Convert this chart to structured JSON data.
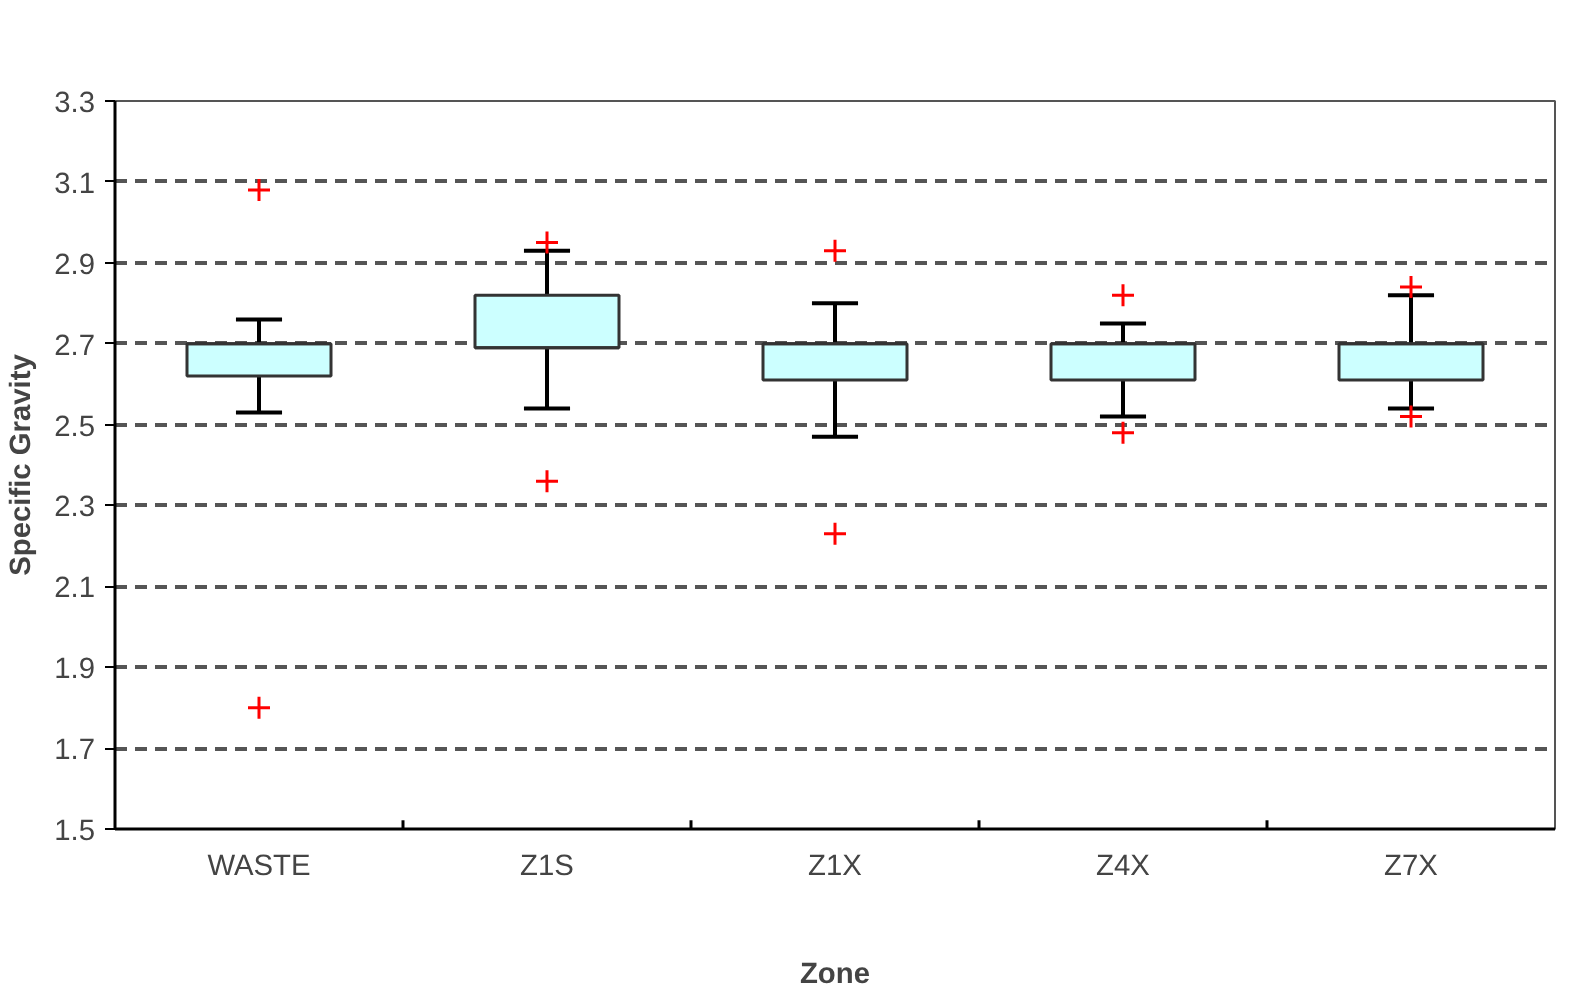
{
  "chart_data": {
    "type": "box",
    "xlabel": "Zone",
    "ylabel": "Specific Gravity",
    "categories": [
      "WASTE",
      "Z1S",
      "Z1X",
      "Z4X",
      "Z7X"
    ],
    "boxes": [
      {
        "low": 2.53,
        "q1": 2.62,
        "median": 2.7,
        "q3": 2.7,
        "high": 2.76,
        "outliers": [
          3.08,
          1.8
        ]
      },
      {
        "low": 2.54,
        "q1": 2.69,
        "median": 2.69,
        "q3": 2.82,
        "high": 2.93,
        "outliers": [
          2.95,
          2.36
        ]
      },
      {
        "low": 2.47,
        "q1": 2.61,
        "median": 2.7,
        "q3": 2.7,
        "high": 2.8,
        "outliers": [
          2.93,
          2.23
        ]
      },
      {
        "low": 2.52,
        "q1": 2.61,
        "median": 2.7,
        "q3": 2.7,
        "high": 2.75,
        "outliers": [
          2.82,
          2.48
        ]
      },
      {
        "low": 2.54,
        "q1": 2.61,
        "median": 2.7,
        "q3": 2.7,
        "high": 2.82,
        "outliers": [
          2.84,
          2.52
        ]
      }
    ],
    "color": "#ccffff",
    "ylim": [
      1.5,
      3.3
    ],
    "yticks": [
      1.5,
      1.7,
      1.9,
      2.1,
      2.3,
      2.5,
      2.7,
      2.9,
      3.1,
      3.3
    ],
    "grid": "y",
    "marker": "cross"
  }
}
